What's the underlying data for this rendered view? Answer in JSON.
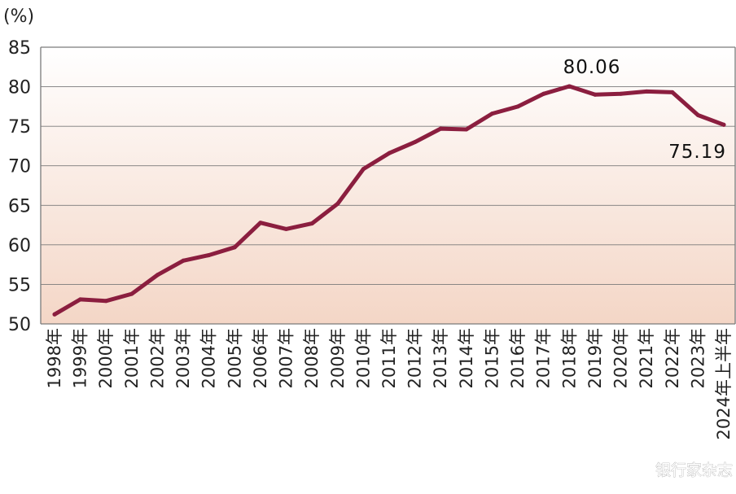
{
  "unit_label": "(%)",
  "watermark": "银行家杂志",
  "annotations": {
    "peak": "80.06",
    "last": "75.19"
  },
  "colors": {
    "line": "#8b1e3f",
    "grid": "#7a7a7a",
    "bg_top": "#ffffff",
    "bg_bottom": "#f4d6c6"
  },
  "chart_data": {
    "type": "line",
    "title": "",
    "xlabel": "",
    "ylabel": "(%)",
    "ylim": [
      50,
      85
    ],
    "yticks": [
      50,
      55,
      60,
      65,
      70,
      75,
      80,
      85
    ],
    "grid": true,
    "categories": [
      "1998年",
      "1999年",
      "2000年",
      "2001年",
      "2002年",
      "2003年",
      "2004年",
      "2005年",
      "2006年",
      "2007年",
      "2008年",
      "2009年",
      "2010年",
      "2011年",
      "2012年",
      "2013年",
      "2014年",
      "2015年",
      "2016年",
      "2017年",
      "2018年",
      "2019年",
      "2020年",
      "2021年",
      "2022年",
      "2023年",
      "2024年上半年"
    ],
    "series": [
      {
        "values": [
          51.2,
          53.1,
          52.9,
          53.8,
          56.2,
          58.0,
          58.7,
          59.7,
          62.8,
          62.0,
          62.7,
          65.2,
          69.6,
          71.6,
          73.0,
          74.7,
          74.6,
          76.6,
          77.5,
          79.1,
          80.06,
          79.0,
          79.1,
          79.4,
          79.3,
          76.4,
          75.19
        ]
      }
    ]
  }
}
